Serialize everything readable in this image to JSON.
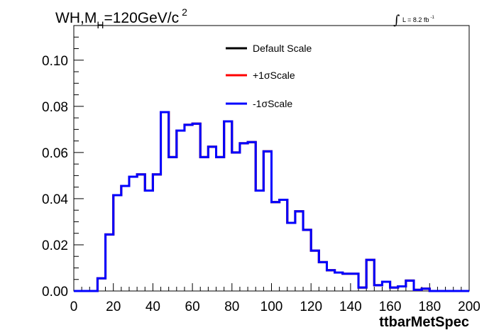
{
  "chart_data": {
    "type": "line",
    "title": "WH,M",
    "title_subscript": "H",
    "title_rest": "=120GeV/c",
    "title_superscript": "2",
    "luminosity_label": "L = 8.2 fb",
    "luminosity_superscript": "-1",
    "xlabel": "ttbarMetSpec",
    "ylabel": "",
    "xlim": [
      0,
      200
    ],
    "ylim": [
      0,
      0.115
    ],
    "x_ticks": [
      0,
      20,
      40,
      60,
      80,
      100,
      120,
      140,
      160,
      180,
      200
    ],
    "y_ticks": [
      0.0,
      0.02,
      0.04,
      0.06,
      0.08,
      0.1
    ],
    "x_tick_labels": [
      "0",
      "20",
      "40",
      "60",
      "80",
      "100",
      "120",
      "140",
      "160",
      "180",
      "200"
    ],
    "y_tick_labels": [
      "0.00",
      "0.02",
      "0.04",
      "0.06",
      "0.08",
      "0.10"
    ],
    "grid": false,
    "legend_position": "top-center",
    "bin_edges": [
      0,
      4,
      8,
      12,
      16,
      20,
      24,
      28,
      32,
      36,
      40,
      44,
      48,
      52,
      56,
      60,
      64,
      68,
      72,
      76,
      80,
      84,
      88,
      92,
      96,
      100,
      104,
      108,
      112,
      116,
      120,
      124,
      128,
      132,
      136,
      140,
      144,
      148,
      152,
      156,
      160,
      164,
      168,
      172,
      176,
      180,
      184,
      188,
      192,
      196,
      200
    ],
    "series": [
      {
        "name": "Default Scale",
        "color": "#000000",
        "values": [
          0,
          0,
          0,
          0.0055,
          0.0245,
          0.0415,
          0.0455,
          0.0495,
          0.0505,
          0.0435,
          0.0505,
          0.0775,
          0.058,
          0.0695,
          0.072,
          0.0725,
          0.058,
          0.0625,
          0.058,
          0.0735,
          0.06,
          0.064,
          0.0645,
          0.0435,
          0.0605,
          0.0385,
          0.0395,
          0.0295,
          0.0345,
          0.0265,
          0.0175,
          0.0125,
          0.009,
          0.008,
          0.0075,
          0.0075,
          0.0015,
          0.0135,
          0.0025,
          0.004,
          0.0015,
          0.002,
          0.0045,
          0.0005,
          0.001,
          0,
          0,
          0,
          0,
          0
        ]
      },
      {
        "name": "+1σScale",
        "color": "#ff0000",
        "values": [
          0,
          0,
          0,
          0.0055,
          0.0245,
          0.0415,
          0.0455,
          0.0495,
          0.0505,
          0.0435,
          0.0505,
          0.0775,
          0.058,
          0.0695,
          0.072,
          0.0725,
          0.058,
          0.0625,
          0.058,
          0.0735,
          0.06,
          0.064,
          0.0645,
          0.0435,
          0.0605,
          0.0385,
          0.0395,
          0.0295,
          0.0345,
          0.0265,
          0.0175,
          0.0125,
          0.009,
          0.008,
          0.0075,
          0.0075,
          0.0015,
          0.0135,
          0.0025,
          0.004,
          0.0015,
          0.002,
          0.0045,
          0.0005,
          0.001,
          0,
          0,
          0,
          0,
          0
        ]
      },
      {
        "name": "-1σScale",
        "color": "#0000ff",
        "values": [
          0,
          0,
          0,
          0.0055,
          0.0245,
          0.0415,
          0.0455,
          0.0495,
          0.0505,
          0.0435,
          0.0505,
          0.0775,
          0.058,
          0.0695,
          0.072,
          0.0725,
          0.058,
          0.0625,
          0.058,
          0.0735,
          0.06,
          0.064,
          0.0645,
          0.0435,
          0.0605,
          0.0385,
          0.0395,
          0.0295,
          0.0345,
          0.0265,
          0.0175,
          0.0125,
          0.009,
          0.008,
          0.0075,
          0.0075,
          0.0015,
          0.0135,
          0.0025,
          0.004,
          0.0015,
          0.002,
          0.0045,
          0.0005,
          0.001,
          0,
          0,
          0,
          0,
          0
        ]
      }
    ]
  }
}
